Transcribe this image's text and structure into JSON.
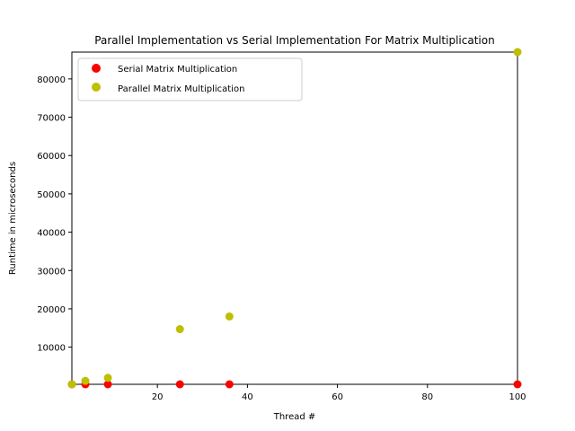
{
  "chart_data": {
    "type": "scatter",
    "title": "Parallel Implementation vs Serial Implementation For Matrix Multiplication",
    "xlabel": "Thread #",
    "ylabel": "Runtime in microseconds",
    "xlim": [
      1,
      100
    ],
    "ylim": [
      300,
      87000
    ],
    "xticks": [
      20,
      40,
      60,
      80,
      100
    ],
    "yticks": [
      10000,
      20000,
      30000,
      40000,
      50000,
      60000,
      70000,
      80000
    ],
    "grid": false,
    "legend_position": "top-left",
    "series": [
      {
        "name": "Serial Matrix Multiplication",
        "color": "#ff0000",
        "points": [
          [
            1,
            300
          ],
          [
            4,
            300
          ],
          [
            9,
            300
          ],
          [
            25,
            300
          ],
          [
            36,
            300
          ],
          [
            100,
            300
          ]
        ]
      },
      {
        "name": "Parallel Matrix Multiplication",
        "color": "#bfbf00",
        "points": [
          [
            1,
            300
          ],
          [
            4,
            1200
          ],
          [
            9,
            2000
          ],
          [
            25,
            14700
          ],
          [
            36,
            18000
          ],
          [
            100,
            87000
          ]
        ]
      }
    ]
  }
}
